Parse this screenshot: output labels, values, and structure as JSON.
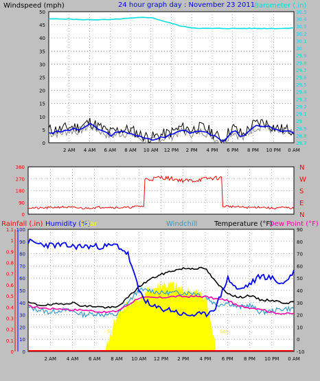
{
  "panel1": {
    "left_title": "Windspeed (mph)",
    "center_title": "24 hour graph day : November 23 2011",
    "right_title": "Barometer (.in)",
    "y_left_ticks": [
      "0",
      "5",
      "10",
      "15",
      "20",
      "25",
      "30",
      "35",
      "40",
      "45",
      "50"
    ],
    "y_right_ticks": [
      "30.5",
      "30.4",
      "30.3",
      "30.2",
      "30.1",
      "30",
      "29.9",
      "29.8",
      "29.7",
      "29.6",
      "29.5",
      "29.4",
      "29.3",
      "29.2",
      "29.1",
      "29",
      "28.9",
      "28.8",
      "28.7"
    ],
    "x_ticks": [
      "2 AM",
      "4 AM",
      "6 AM",
      "8 AM",
      "10 AM",
      "12 PM",
      "2 PM",
      "4 PM",
      "6 PM",
      "8 PM",
      "10 PM",
      "0 AM"
    ]
  },
  "panel2": {
    "y_ticks": [
      "360",
      "270",
      "180",
      "90",
      "0"
    ],
    "dir_labels": [
      "N",
      "W",
      "S",
      "E",
      "N"
    ]
  },
  "panel3": {
    "titles": {
      "rainfall": "Rainfall (.in)",
      "humidity": "Humidity (%)",
      "solar": "Solar",
      "windchill": "Windchill",
      "temperature": "Temperature (°F)",
      "dewpoint": "Dew Point (°F)"
    },
    "rain_ticks": [
      "0",
      "0.1",
      "0.2",
      "0.3",
      "0.4",
      "0.5",
      "0.6",
      "0.7",
      "0.8",
      "0.9",
      "1",
      "1.1"
    ],
    "hum_ticks": [
      "0",
      "10",
      "20",
      "30",
      "40",
      "50",
      "60",
      "70",
      "80",
      "90",
      "100"
    ],
    "temp_ticks": [
      "-10",
      "0",
      "10",
      "20",
      "30",
      "40",
      "50",
      "60",
      "70",
      "80",
      "90"
    ],
    "sunrise": "Sun Rise",
    "sunset": "Set",
    "x_ticks": [
      "2 AM",
      "4 AM",
      "6 AM",
      "8 AM",
      "10 AM",
      "12 PM",
      "2 PM",
      "4 PM",
      "6 PM",
      "8 PM",
      "10 PM",
      "0 AM"
    ]
  },
  "colors": {
    "wind": "#000000",
    "gust": "#0000ff",
    "barometer": "#00e0e0",
    "direction": "#ff0000",
    "humidity": "#0000ff",
    "solar": "#ffff00",
    "windchill": "#3399cc",
    "temperature": "#000000",
    "dewpoint": "#ff00aa",
    "rain": "#ff0000"
  },
  "chart_data": [
    {
      "type": "line",
      "title": "24 hour graph day : November 23 2011",
      "x": [
        "0 AM",
        "1 AM",
        "2 AM",
        "3 AM",
        "4 AM",
        "5 AM",
        "6 AM",
        "7 AM",
        "8 AM",
        "9 AM",
        "10 AM",
        "11 AM",
        "12 PM",
        "1 PM",
        "2 PM",
        "3 PM",
        "4 PM",
        "5 PM",
        "6 PM",
        "7 PM",
        "8 PM",
        "9 PM",
        "10 PM",
        "11 PM",
        "0 AM"
      ],
      "ylim": [
        0,
        50
      ],
      "y2lim": [
        28.7,
        30.5
      ],
      "series": [
        {
          "name": "Windspeed (mph)",
          "axis": "left",
          "values": [
            5,
            5,
            6,
            6,
            8,
            6,
            4,
            5,
            5,
            3,
            2,
            3,
            4,
            6,
            5,
            6,
            4,
            1,
            6,
            3,
            7,
            8,
            6,
            5,
            5
          ]
        },
        {
          "name": "Barometer (.in)",
          "axis": "right",
          "values": [
            30.4,
            30.4,
            30.4,
            30.39,
            30.39,
            30.39,
            30.39,
            30.4,
            30.41,
            30.42,
            30.42,
            30.38,
            30.34,
            30.3,
            30.28,
            30.27,
            30.27,
            30.27,
            30.27,
            30.27,
            30.27,
            30.27,
            30.27,
            30.27,
            30.28
          ]
        }
      ]
    },
    {
      "type": "line",
      "x": [
        "0 AM",
        "1 AM",
        "2 AM",
        "3 AM",
        "4 AM",
        "5 AM",
        "6 AM",
        "7 AM",
        "8 AM",
        "9 AM",
        "10 AM",
        "11 AM",
        "12 PM",
        "1 PM",
        "2 PM",
        "3 PM",
        "4 PM",
        "5 PM",
        "6 PM",
        "7 PM",
        "8 PM",
        "9 PM",
        "10 PM",
        "11 PM",
        "0 AM"
      ],
      "ylim": [
        0,
        360
      ],
      "series": [
        {
          "name": "Wind Direction",
          "values": [
            50,
            45,
            50,
            55,
            50,
            45,
            50,
            55,
            50,
            50,
            60,
            265,
            280,
            270,
            255,
            255,
            270,
            275,
            60,
            55,
            50,
            55,
            45,
            50,
            45
          ]
        }
      ]
    },
    {
      "type": "line",
      "x": [
        "0 AM",
        "1 AM",
        "2 AM",
        "3 AM",
        "4 AM",
        "5 AM",
        "6 AM",
        "7 AM",
        "8 AM",
        "9 AM",
        "10 AM",
        "11 AM",
        "12 PM",
        "1 PM",
        "2 PM",
        "3 PM",
        "4 PM",
        "5 PM",
        "6 PM",
        "7 PM",
        "8 PM",
        "9 PM",
        "10 PM",
        "11 PM",
        "0 AM"
      ],
      "ylim": [
        -10,
        90
      ],
      "series": [
        {
          "name": "Humidity (%)",
          "axis": "humidity",
          "values": [
            90,
            88,
            87,
            87,
            86,
            86,
            86,
            86,
            87,
            80,
            50,
            37,
            35,
            34,
            30,
            30,
            30,
            37,
            60,
            50,
            55,
            62,
            60,
            55,
            65
          ]
        },
        {
          "name": "Solar",
          "axis": "temperature",
          "values": [
            -10,
            -10,
            -10,
            -10,
            -10,
            -10,
            -10,
            -10,
            20,
            28,
            33,
            40,
            44,
            44,
            40,
            38,
            35,
            -10,
            -10,
            -10,
            -10,
            -10,
            -10,
            -10,
            -10
          ]
        },
        {
          "name": "Windchill",
          "axis": "temperature",
          "values": [
            26,
            24,
            22,
            24,
            23,
            20,
            21,
            20,
            20,
            30,
            40,
            40,
            38,
            38,
            38,
            38,
            35,
            28,
            30,
            26,
            28,
            22,
            23,
            25,
            25
          ]
        },
        {
          "name": "Temperature (°F)",
          "axis": "temperature",
          "values": [
            30,
            28,
            28,
            29,
            30,
            27,
            27,
            26,
            26,
            34,
            43,
            49,
            53,
            56,
            58,
            58,
            58,
            46,
            38,
            34,
            36,
            32,
            32,
            30,
            30
          ]
        },
        {
          "name": "Dew Point (°F)",
          "axis": "temperature",
          "values": [
            27,
            26,
            25,
            25,
            24,
            24,
            23,
            22,
            23,
            28,
            34,
            34,
            34,
            35,
            35,
            35,
            35,
            33,
            32,
            27,
            26,
            25,
            22,
            21,
            21
          ]
        }
      ]
    }
  ]
}
